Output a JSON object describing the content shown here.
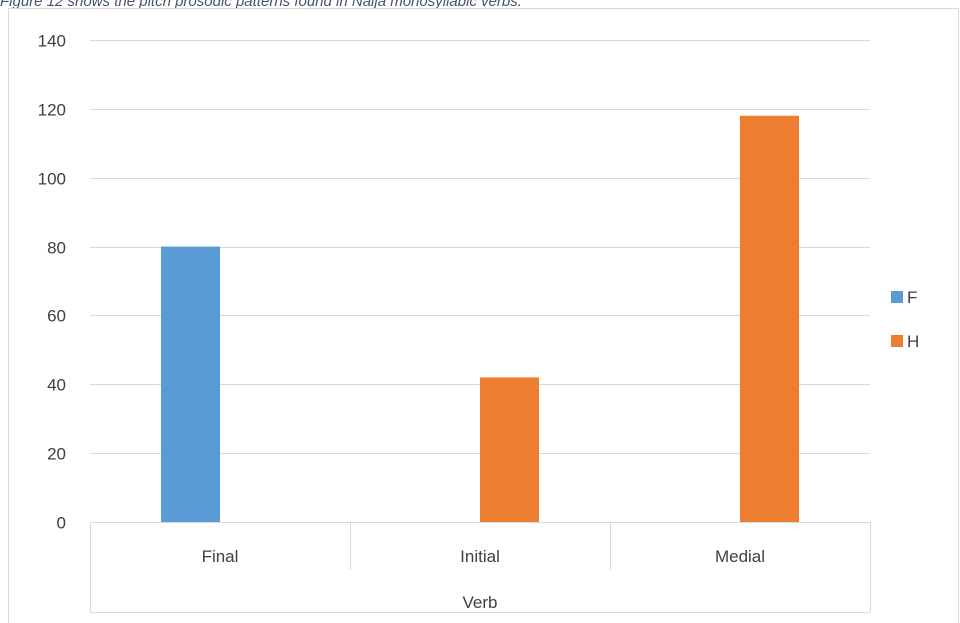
{
  "caption": "Figure 12 shows the pitch prosodic patterns found in Naija monosyllabic verbs.",
  "chart_data": {
    "type": "bar",
    "title": "",
    "xlabel": "",
    "ylabel": "",
    "category_group_label": "Verb",
    "categories": [
      "Final",
      "Initial",
      "Medial"
    ],
    "series": [
      {
        "name": "F",
        "color": "#5b9bd5",
        "values": [
          80,
          0,
          0
        ]
      },
      {
        "name": "H",
        "color": "#ed7d31",
        "values": [
          0,
          42,
          118
        ]
      }
    ],
    "ylim": [
      0,
      140
    ],
    "yticks": [
      0,
      20,
      40,
      60,
      80,
      100,
      120,
      140
    ],
    "grid": true,
    "legend_position": "right"
  }
}
